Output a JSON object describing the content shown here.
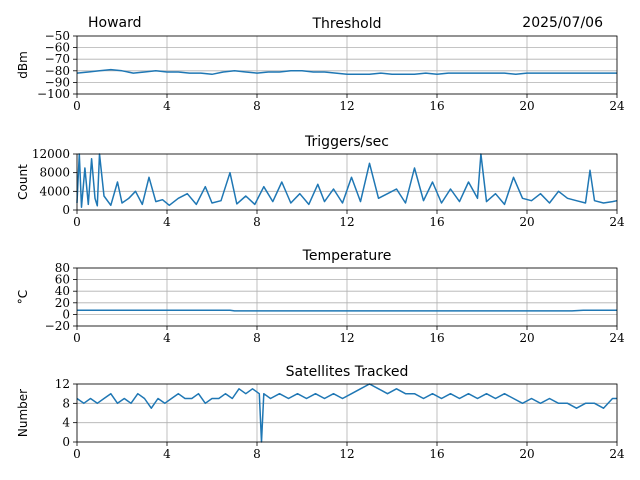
{
  "header": {
    "station": "Howard",
    "date": "2025/07/06"
  },
  "series_color": "#1f77b4",
  "chart_data": [
    {
      "type": "line",
      "title": "Threshold",
      "ylabel": "dBm",
      "xlim": [
        0,
        24
      ],
      "ylim": [
        -100,
        -50
      ],
      "xticks": [
        0,
        4,
        8,
        12,
        16,
        20,
        24
      ],
      "xtick_labels": [
        "0",
        "4",
        "8",
        "12",
        "16",
        "20",
        "24"
      ],
      "yticks": [
        -100,
        -90,
        -80,
        -70,
        -60,
        -50
      ],
      "ytick_labels": [
        "−100",
        "−90",
        "−80",
        "−70",
        "−60",
        "−50"
      ],
      "grid": true,
      "x": [
        0,
        0.5,
        1,
        1.5,
        2,
        2.5,
        3,
        3.5,
        4,
        4.5,
        5,
        5.5,
        6,
        6.5,
        7,
        7.5,
        8,
        8.5,
        9,
        9.5,
        10,
        10.5,
        11,
        11.5,
        12,
        12.5,
        13,
        13.5,
        14,
        14.5,
        15,
        15.5,
        16,
        16.5,
        17,
        17.5,
        18,
        18.5,
        19,
        19.5,
        20,
        20.5,
        21,
        21.5,
        22,
        22.5,
        23,
        23.5,
        24
      ],
      "y": [
        -82,
        -81,
        -80,
        -79,
        -80,
        -82,
        -81,
        -80,
        -81,
        -81,
        -82,
        -82,
        -83,
        -81,
        -80,
        -81,
        -82,
        -81,
        -81,
        -80,
        -80,
        -81,
        -81,
        -82,
        -83,
        -83,
        -83,
        -82,
        -83,
        -83,
        -83,
        -82,
        -83,
        -82,
        -82,
        -82,
        -82,
        -82,
        -82,
        -83,
        -82,
        -82,
        -82,
        -82,
        -82,
        -82,
        -82,
        -82,
        -82
      ]
    },
    {
      "type": "line",
      "title": "Triggers/sec",
      "ylabel": "Count",
      "xlim": [
        0,
        24
      ],
      "ylim": [
        0,
        12000
      ],
      "xticks": [
        0,
        4,
        8,
        12,
        16,
        20,
        24
      ],
      "xtick_labels": [
        "0",
        "4",
        "8",
        "12",
        "16",
        "20",
        "24"
      ],
      "yticks": [
        0,
        4000,
        8000,
        12000
      ],
      "ytick_labels": [
        "0",
        "4000",
        "8000",
        "12000"
      ],
      "grid": true,
      "x": [
        0,
        0.1,
        0.2,
        0.35,
        0.5,
        0.65,
        0.8,
        0.9,
        1.0,
        1.2,
        1.5,
        1.8,
        2.0,
        2.3,
        2.6,
        2.9,
        3.2,
        3.5,
        3.8,
        4.1,
        4.5,
        4.9,
        5.3,
        5.7,
        6.0,
        6.4,
        6.8,
        7.1,
        7.5,
        7.9,
        8.3,
        8.7,
        9.1,
        9.5,
        9.9,
        10.3,
        10.7,
        11.0,
        11.4,
        11.8,
        12.2,
        12.6,
        13.0,
        13.4,
        13.8,
        14.2,
        14.6,
        15.0,
        15.4,
        15.8,
        16.2,
        16.6,
        17.0,
        17.4,
        17.8,
        17.95,
        18.2,
        18.6,
        19.0,
        19.4,
        19.8,
        20.2,
        20.6,
        21.0,
        21.4,
        21.8,
        22.2,
        22.6,
        22.8,
        23.0,
        23.4,
        23.8,
        24
      ],
      "y": [
        1500,
        12000,
        600,
        9000,
        1200,
        11000,
        2500,
        900,
        12000,
        3000,
        1000,
        6000,
        1500,
        2500,
        4000,
        1200,
        7000,
        1800,
        2200,
        1000,
        2500,
        3500,
        1200,
        5000,
        1500,
        2000,
        8000,
        1300,
        3000,
        1200,
        5000,
        1800,
        6000,
        1500,
        3500,
        1200,
        5500,
        1800,
        4500,
        1500,
        7000,
        1800,
        10000,
        2500,
        3500,
        4500,
        1500,
        9000,
        2000,
        6000,
        1500,
        4500,
        1800,
        6000,
        2500,
        12000,
        1800,
        3500,
        1200,
        7000,
        2500,
        2000,
        3500,
        1500,
        4000,
        2500,
        2000,
        1500,
        8500,
        2000,
        1500,
        1800,
        2000
      ]
    },
    {
      "type": "line",
      "title": "Temperature",
      "ylabel": "°C",
      "xlim": [
        0,
        24
      ],
      "ylim": [
        -20,
        80
      ],
      "xticks": [
        0,
        4,
        8,
        12,
        16,
        20,
        24
      ],
      "xtick_labels": [
        "0",
        "4",
        "8",
        "12",
        "16",
        "20",
        "24"
      ],
      "yticks": [
        -20,
        0,
        20,
        40,
        60,
        80
      ],
      "ytick_labels": [
        "−20",
        "0",
        "20",
        "40",
        "60",
        "80"
      ],
      "grid": true,
      "x": [
        0,
        2,
        4,
        6,
        6.8,
        7,
        8,
        10,
        12,
        14,
        16,
        18,
        20,
        22,
        22.5,
        23,
        24
      ],
      "y": [
        7,
        7,
        7,
        7,
        7,
        6,
        6,
        6,
        6,
        6,
        6,
        6,
        6,
        6,
        7,
        7,
        7
      ]
    },
    {
      "type": "line",
      "title": "Satellites Tracked",
      "ylabel": "Number",
      "xlim": [
        0,
        24
      ],
      "ylim": [
        0,
        12
      ],
      "xticks": [
        0,
        4,
        8,
        12,
        16,
        20,
        24
      ],
      "xtick_labels": [
        "0",
        "4",
        "8",
        "12",
        "16",
        "20",
        "24"
      ],
      "yticks": [
        0,
        4,
        8,
        12
      ],
      "ytick_labels": [
        "0",
        "4",
        "8",
        "12"
      ],
      "grid": true,
      "x": [
        0,
        0.3,
        0.6,
        0.9,
        1.2,
        1.5,
        1.8,
        2.1,
        2.4,
        2.7,
        3.0,
        3.3,
        3.6,
        3.9,
        4.2,
        4.5,
        4.8,
        5.1,
        5.4,
        5.7,
        6.0,
        6.3,
        6.6,
        6.9,
        7.2,
        7.5,
        7.8,
        8.1,
        8.2,
        8.3,
        8.6,
        9.0,
        9.4,
        9.8,
        10.2,
        10.6,
        11.0,
        11.4,
        11.8,
        12.2,
        12.6,
        13.0,
        13.4,
        13.8,
        14.2,
        14.6,
        15.0,
        15.4,
        15.8,
        16.2,
        16.6,
        17.0,
        17.4,
        17.8,
        18.2,
        18.6,
        19.0,
        19.4,
        19.8,
        20.2,
        20.6,
        21.0,
        21.4,
        21.8,
        22.2,
        22.6,
        23.0,
        23.4,
        23.8,
        24
      ],
      "y": [
        9,
        8,
        9,
        8,
        9,
        10,
        8,
        9,
        8,
        10,
        9,
        7,
        9,
        8,
        9,
        10,
        9,
        9,
        10,
        8,
        9,
        9,
        10,
        9,
        11,
        10,
        11,
        10,
        0,
        10,
        9,
        10,
        9,
        10,
        9,
        10,
        9,
        10,
        9,
        10,
        11,
        12,
        11,
        10,
        11,
        10,
        10,
        9,
        10,
        9,
        10,
        9,
        10,
        9,
        10,
        9,
        10,
        9,
        8,
        9,
        8,
        9,
        8,
        8,
        7,
        8,
        8,
        7,
        9,
        9
      ]
    }
  ]
}
